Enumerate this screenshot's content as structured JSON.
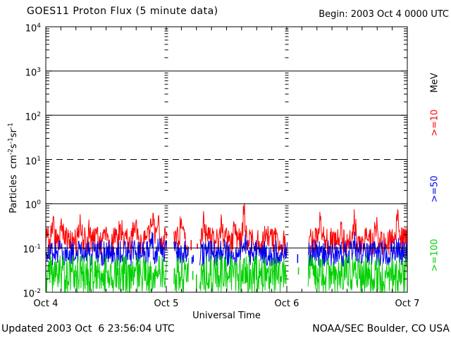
{
  "header": {
    "title": "GOES11 Proton Flux (5 minute data)",
    "begin": "Begin: 2003 Oct 4 0000 UTC"
  },
  "footer": {
    "updated": "Updated 2003 Oct  6 23:56:04 UTC",
    "credit": "NOAA/SEC Boulder, CO USA"
  },
  "legend": {
    "unit": "MeV",
    "items": [
      {
        "label": ">=10",
        "color": "#ff0000",
        "name": ">=10 MeV"
      },
      {
        "label": ">=50",
        "color": "#0000ee",
        "name": ">=50 MeV"
      },
      {
        "label": ">=100",
        "color": "#00d000",
        "name": ">=100 MeV"
      }
    ]
  },
  "colors": {
    "axis": "#000000",
    "background": "#ffffff"
  },
  "chart_data": {
    "type": "line",
    "title": "GOES11 Proton Flux (5 minute data)",
    "x_axis": {
      "label": "Universal Time",
      "tick_labels": [
        "Oct 4",
        "Oct 5",
        "Oct 6",
        "Oct 7"
      ],
      "range_days": [
        0,
        3
      ],
      "minor_tick_hours": 3
    },
    "y_axis": {
      "title_parts": [
        {
          "text": "Particles  cm",
          "sup": "-2"
        },
        {
          "text": "s",
          "sup": "-1"
        },
        {
          "text": "sr",
          "sup": "-1"
        }
      ],
      "scale": "log",
      "log_range": [
        -2,
        4
      ],
      "tick_labels": [
        {
          "base": "10",
          "exp": "4"
        },
        {
          "base": "10",
          "exp": "3"
        },
        {
          "base": "10",
          "exp": "2"
        },
        {
          "base": "10",
          "exp": "1"
        },
        {
          "base": "10",
          "exp": "0"
        },
        {
          "base": "10",
          "exp": "-1"
        },
        {
          "base": "10",
          "exp": "-2"
        }
      ]
    },
    "gridlines": {
      "solid_log": [
        3,
        2,
        0,
        -1
      ],
      "dashed_log": [
        1
      ]
    },
    "samples_per_day": 288,
    "seed": 20031004,
    "series": [
      {
        "name": ">=10 MeV",
        "color": "#ff0000",
        "median_flux": 0.14,
        "typical_range": [
          0.07,
          0.45
        ],
        "base_log": -0.85,
        "noise_log": 0.32,
        "spikes": [
          {
            "d": 0.06,
            "a": 0.3,
            "w": 0.01
          },
          {
            "d": 0.13,
            "a": 0.38,
            "w": 0.01
          },
          {
            "d": 0.28,
            "a": 0.42,
            "w": 0.012
          },
          {
            "d": 0.36,
            "a": 0.3,
            "w": 0.008
          },
          {
            "d": 0.5,
            "a": 0.28,
            "w": 0.01
          },
          {
            "d": 0.62,
            "a": 0.35,
            "w": 0.01
          },
          {
            "d": 0.74,
            "a": 0.4,
            "w": 0.012
          },
          {
            "d": 0.88,
            "a": 0.55,
            "w": 0.014
          },
          {
            "d": 0.935,
            "a": 0.7,
            "w": 0.008
          },
          {
            "d": 1.12,
            "a": 0.32,
            "w": 0.01
          },
          {
            "d": 1.31,
            "a": 0.42,
            "w": 0.012
          },
          {
            "d": 1.46,
            "a": 0.38,
            "w": 0.01
          },
          {
            "d": 1.565,
            "a": 0.45,
            "w": 0.008
          },
          {
            "d": 1.645,
            "a": 0.6,
            "w": 0.01
          },
          {
            "d": 1.83,
            "a": 0.35,
            "w": 0.01
          },
          {
            "d": 2.28,
            "a": 0.42,
            "w": 0.012
          },
          {
            "d": 2.45,
            "a": 0.35,
            "w": 0.008
          },
          {
            "d": 2.56,
            "a": 0.48,
            "w": 0.01
          },
          {
            "d": 2.74,
            "a": 0.32,
            "w": 0.01
          },
          {
            "d": 2.92,
            "a": 0.45,
            "w": 0.009
          }
        ]
      },
      {
        "name": ">=50 MeV",
        "color": "#0000ee",
        "median_flux": 0.075,
        "typical_range": [
          0.035,
          0.16
        ],
        "base_log": -1.12,
        "noise_log": 0.3,
        "spikes": [
          {
            "d": 0.88,
            "a": 0.25,
            "w": 0.012
          },
          {
            "d": 0.935,
            "a": 0.3,
            "w": 0.008
          },
          {
            "d": 1.645,
            "a": 0.25,
            "w": 0.01
          },
          {
            "d": 2.56,
            "a": 0.2,
            "w": 0.01
          },
          {
            "d": 2.92,
            "a": 0.22,
            "w": 0.009
          }
        ]
      },
      {
        "name": ">=100 MeV",
        "color": "#00d000",
        "median_flux": 0.026,
        "typical_range": [
          0.01,
          0.07
        ],
        "base_log": -1.6,
        "noise_log": 0.45,
        "clip_min_log": -2,
        "spikes": [
          {
            "d": 0.935,
            "a": 0.25,
            "w": 0.008
          },
          {
            "d": 1.645,
            "a": 0.22,
            "w": 0.01
          }
        ]
      }
    ],
    "gaps_days": [
      [
        1.005,
        1.06
      ],
      [
        1.187,
        1.275
      ],
      [
        2.006,
        2.175
      ]
    ],
    "orphan_strokes": [
      {
        "series": 0,
        "day": 1.206,
        "from": -1.05,
        "to": -0.82
      },
      {
        "series": 0,
        "day": 1.258,
        "from": -1.02,
        "to": -0.9
      },
      {
        "series": 1,
        "day": 1.214,
        "from": -1.36,
        "to": -1.2
      },
      {
        "series": 1,
        "day": 1.224,
        "from": -1.32,
        "to": -1.16
      },
      {
        "series": 2,
        "day": 1.22,
        "from": -1.72,
        "to": -1.52
      },
      {
        "series": 2,
        "day": 1.25,
        "from": -1.98,
        "to": -1.6
      },
      {
        "series": 1,
        "day": 2.09,
        "from": -1.34,
        "to": -1.14
      },
      {
        "series": 2,
        "day": 2.097,
        "from": -1.6,
        "to": -1.44
      }
    ]
  }
}
